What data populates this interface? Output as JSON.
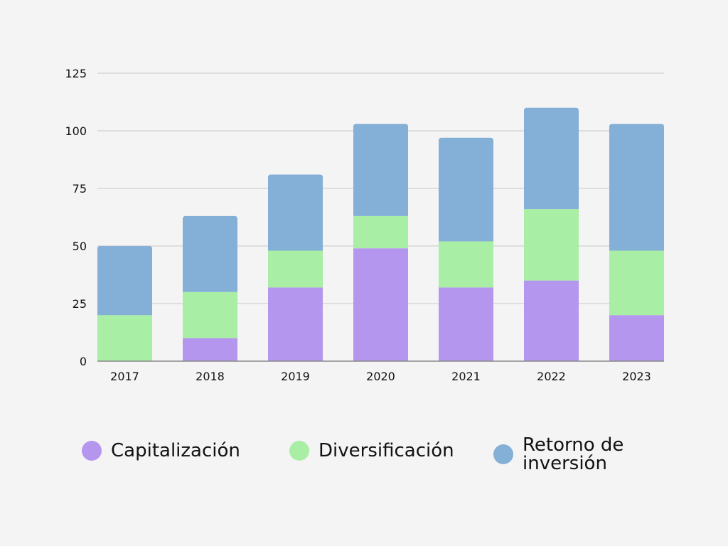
{
  "chart_data": {
    "type": "bar",
    "stacked": true,
    "categories": [
      "2017",
      "2018",
      "2019",
      "2020",
      "2021",
      "2022",
      "2023"
    ],
    "series": [
      {
        "name": "Capitalización",
        "color": "#b596ef",
        "values": [
          0,
          10,
          32,
          49,
          32,
          35,
          20
        ]
      },
      {
        "name": "Diversificación",
        "color": "#a8eea4",
        "values": [
          20,
          20,
          16,
          14,
          20,
          31,
          28
        ]
      },
      {
        "name": "Retorno de inversión",
        "color": "#84afd6",
        "values": [
          30,
          33,
          33,
          40,
          45,
          44,
          55
        ]
      }
    ],
    "ylim": [
      0,
      125
    ],
    "yticks": [
      "0",
      "25",
      "50",
      "75",
      "100",
      "125"
    ],
    "title": "",
    "xlabel": "",
    "ylabel": "",
    "grid": true,
    "legend_position": "bottom",
    "gridline_color": "#c8c8c8",
    "axis_color": "#8a8a8a"
  }
}
